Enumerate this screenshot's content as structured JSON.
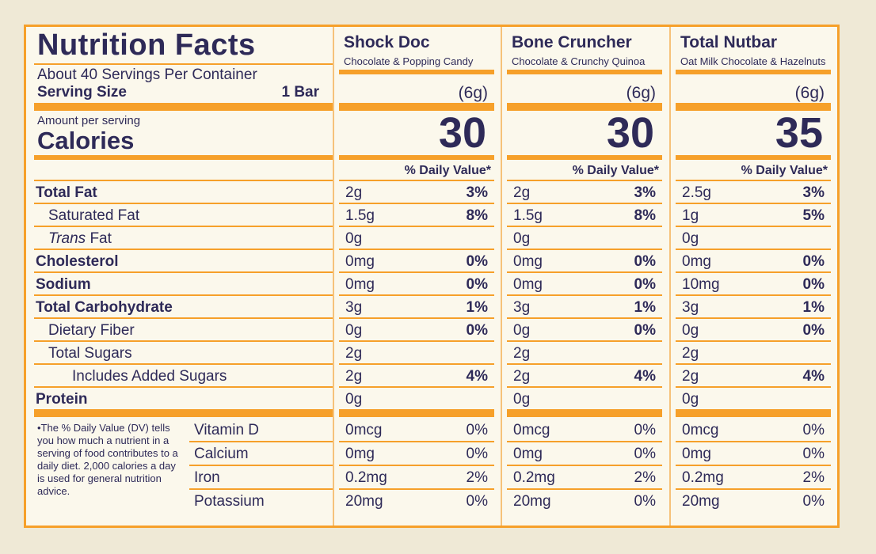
{
  "colors": {
    "orange": "#f6a02a",
    "text": "#2e2a58",
    "background": "#fbf8ec"
  },
  "left": {
    "title": "Nutrition Facts",
    "servings": "About 40 Servings Per Container",
    "serving_size_label": "Serving Size",
    "serving_size_value": "1 Bar",
    "amount_per_serving": "Amount per serving",
    "calories_label": "Calories",
    "nutrients": [
      {
        "label": "Total Fat",
        "style": "bold"
      },
      {
        "label": "Saturated Fat",
        "style": "ind1"
      },
      {
        "label": "Trans Fat",
        "style": "ind1"
      },
      {
        "label": "Cholesterol",
        "style": "bold"
      },
      {
        "label": "Sodium",
        "style": "bold"
      },
      {
        "label": "Total Carbohydrate",
        "style": "bold"
      },
      {
        "label": "Dietary Fiber",
        "style": "ind1"
      },
      {
        "label": "Total Sugars",
        "style": "ind1"
      },
      {
        "label": "Includes Added Sugars",
        "style": "ind2"
      },
      {
        "label": "Protein",
        "style": "bold"
      }
    ],
    "footnote": "•The % Daily Value (DV) tells you how much a nutrient in a serving of food contributes to a daily diet. 2,000 calories a day is used for general nutrition advice.",
    "vitamins": [
      "Vitamin D",
      "Calcium",
      "Iron",
      "Potassium"
    ]
  },
  "products": [
    {
      "name": "Shock Doc",
      "subtitle": "Chocolate & Popping Candy",
      "serving": "(6g)",
      "calories": "30",
      "dv_header": "% Daily Value*",
      "nutrients": [
        [
          "2g",
          "3%"
        ],
        [
          "1.5g",
          "8%"
        ],
        [
          "0g",
          ""
        ],
        [
          "0mg",
          "0%"
        ],
        [
          "0mg",
          "0%"
        ],
        [
          "3g",
          "1%"
        ],
        [
          "0g",
          "0%"
        ],
        [
          "2g",
          ""
        ],
        [
          "2g",
          "4%"
        ],
        [
          "0g",
          ""
        ]
      ],
      "vitamins": [
        [
          "0mcg",
          "0%"
        ],
        [
          "0mg",
          "0%"
        ],
        [
          "0.2mg",
          "2%"
        ],
        [
          "20mg",
          "0%"
        ]
      ]
    },
    {
      "name": "Bone Cruncher",
      "subtitle": "Chocolate & Crunchy Quinoa",
      "serving": "(6g)",
      "calories": "30",
      "dv_header": "% Daily Value*",
      "nutrients": [
        [
          "2g",
          "3%"
        ],
        [
          "1.5g",
          "8%"
        ],
        [
          "0g",
          ""
        ],
        [
          "0mg",
          "0%"
        ],
        [
          "0mg",
          "0%"
        ],
        [
          "3g",
          "1%"
        ],
        [
          "0g",
          "0%"
        ],
        [
          "2g",
          ""
        ],
        [
          "2g",
          "4%"
        ],
        [
          "0g",
          ""
        ]
      ],
      "vitamins": [
        [
          "0mcg",
          "0%"
        ],
        [
          "0mg",
          "0%"
        ],
        [
          "0.2mg",
          "2%"
        ],
        [
          "20mg",
          "0%"
        ]
      ]
    },
    {
      "name": "Total Nutbar",
      "subtitle": "Oat Milk Chocolate & Hazelnuts",
      "serving": "(6g)",
      "calories": "35",
      "dv_header": "% Daily Value*",
      "nutrients": [
        [
          "2.5g",
          "3%"
        ],
        [
          "1g",
          "5%"
        ],
        [
          "0g",
          ""
        ],
        [
          "0mg",
          "0%"
        ],
        [
          "10mg",
          "0%"
        ],
        [
          "3g",
          "1%"
        ],
        [
          "0g",
          "0%"
        ],
        [
          "2g",
          ""
        ],
        [
          "2g",
          "4%"
        ],
        [
          "0g",
          ""
        ]
      ],
      "vitamins": [
        [
          "0mcg",
          "0%"
        ],
        [
          "0mg",
          "0%"
        ],
        [
          "0.2mg",
          "2%"
        ],
        [
          "20mg",
          "0%"
        ]
      ]
    }
  ]
}
